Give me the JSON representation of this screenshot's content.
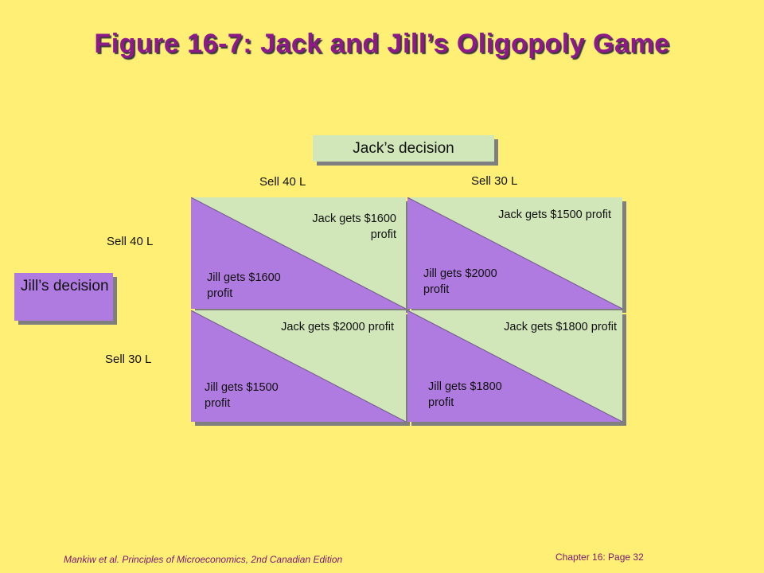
{
  "title": "Figure 16-7: Jack and Jill’s Oligopoly Game",
  "jack_decision_label": "Jack’s  decision",
  "jill_decision_label": "Jill’s decision",
  "columns": [
    "Sell 40 L",
    "Sell 30 L"
  ],
  "rows": [
    "Sell 40 L",
    "Sell 30 L"
  ],
  "cells": [
    {
      "jack": "Jack gets $1600\nprofit",
      "jill": "Jill gets $1600\nprofit"
    },
    {
      "jack": "Jack gets $1500 profit",
      "jill": "Jill gets $2000\nprofit"
    },
    {
      "jack": "Jack gets $2000 profit",
      "jill": "Jill gets $1500\nprofit"
    },
    {
      "jack": "Jack gets $1800 profit",
      "jill": "Jill gets $1800\nprofit"
    }
  ],
  "colors": {
    "background": "#ffef75",
    "jack_green": "#d1e6b9",
    "jill_purple": "#b07be0",
    "title": "#8e1a8a"
  },
  "footer": {
    "citation": "Mankiw et al. Principles of Microeconomics, 2nd Canadian Edition",
    "chapter": "Chapter  16: Page 32"
  }
}
